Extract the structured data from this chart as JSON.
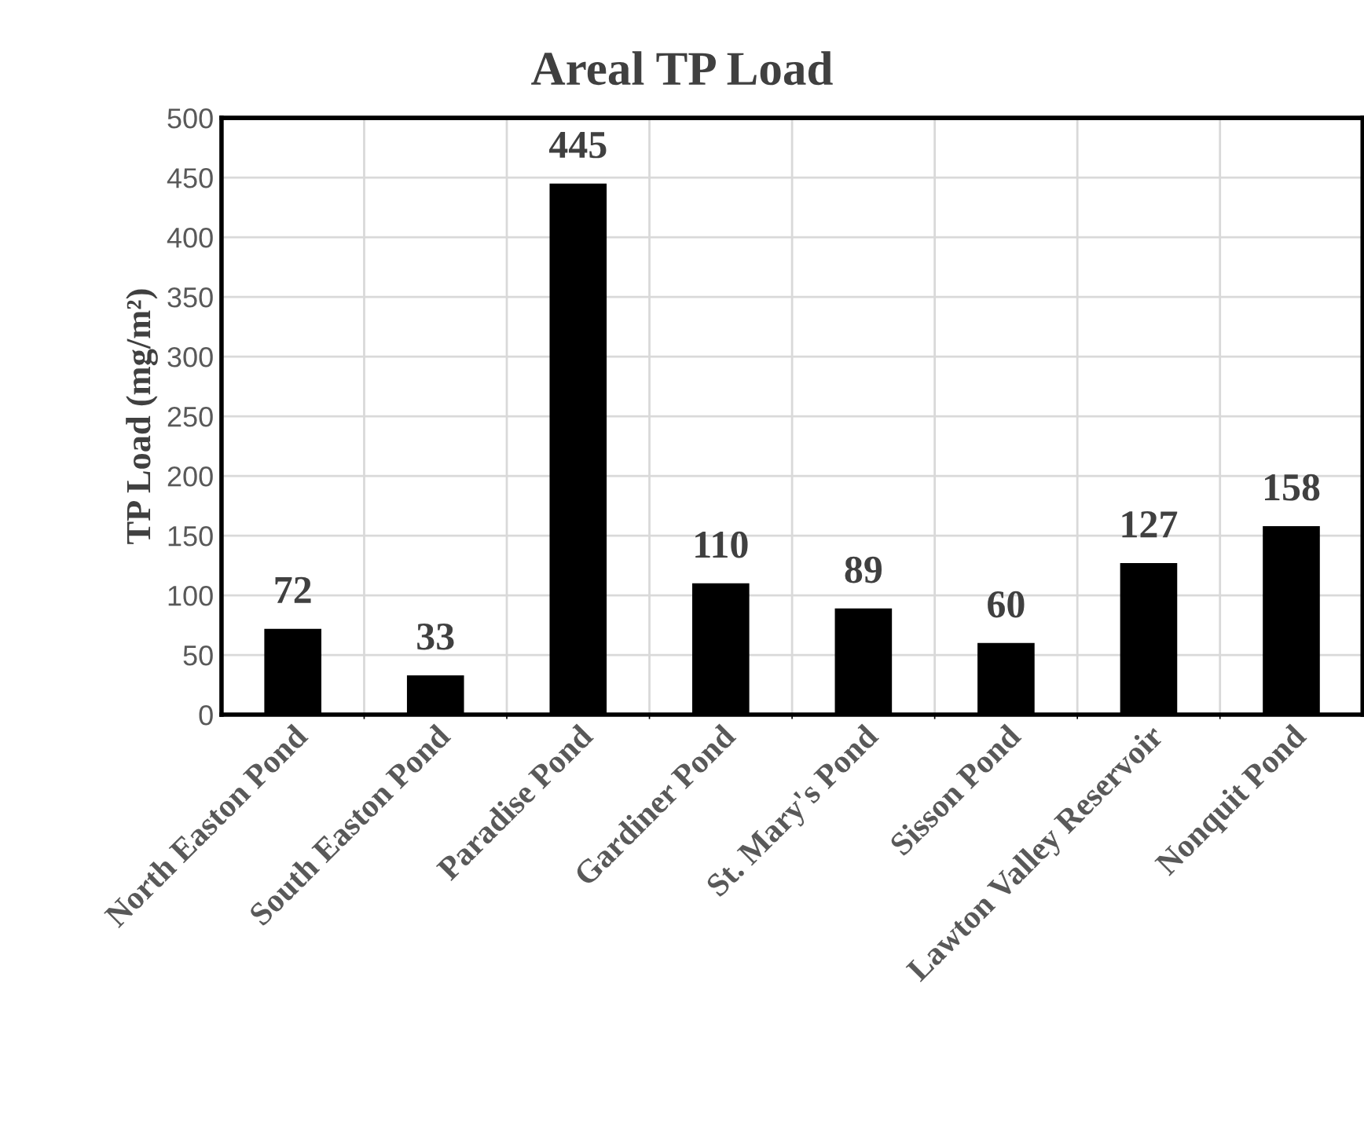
{
  "chart_data": {
    "type": "bar",
    "title": "Areal TP Load",
    "ylabel": "TP Load (mg/m²)",
    "categories": [
      "North Easton Pond",
      "South Easton Pond",
      "Paradise Pond",
      "Gardiner Pond",
      "St. Mary's Pond",
      "Sisson Pond",
      "Lawton Valley Reservoir",
      "Nonquit Pond"
    ],
    "values": [
      72,
      33,
      445,
      110,
      89,
      60,
      127,
      158
    ],
    "color": "#000000",
    "ylim": [
      0,
      500
    ],
    "yticks": [
      0,
      50,
      100,
      150,
      200,
      250,
      300,
      350,
      400,
      450,
      500
    ],
    "grid": true,
    "data_labels": true
  }
}
